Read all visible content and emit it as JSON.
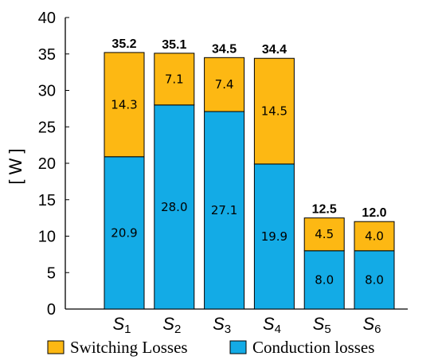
{
  "colors": {
    "switching": "#FDB813",
    "conduction": "#13ABE6",
    "edge": "#000000"
  },
  "chart_data": {
    "type": "bar",
    "stacked": true,
    "categories": [
      {
        "base": "S",
        "sub": "1"
      },
      {
        "base": "S",
        "sub": "2"
      },
      {
        "base": "S",
        "sub": "3"
      },
      {
        "base": "S",
        "sub": "4"
      },
      {
        "base": "S",
        "sub": "5"
      },
      {
        "base": "S",
        "sub": "6"
      }
    ],
    "series": [
      {
        "name": "Conduction losses",
        "values": [
          20.9,
          28.0,
          27.1,
          19.9,
          8.0,
          8.0
        ],
        "labels": [
          "20.9",
          "28.0",
          "27.1",
          "19.9",
          "8.0",
          "8.0"
        ]
      },
      {
        "name": "Switching Losses",
        "values": [
          14.3,
          7.1,
          7.4,
          14.5,
          4.5,
          4.0
        ],
        "labels": [
          "14.3",
          "7.1",
          "7.4",
          "14.5",
          "4.5",
          "4.0"
        ]
      }
    ],
    "totals": [
      "35.2",
      "35.1",
      "34.5",
      "34.4",
      "12.5",
      "12.0"
    ],
    "ylabel": "[ W ]",
    "xlabel": "",
    "ylim": [
      0,
      40
    ],
    "yticks": [
      "0",
      "5",
      "10",
      "15",
      "20",
      "25",
      "30",
      "35",
      "40"
    ],
    "grid": false,
    "legend": {
      "position": "bottom",
      "entries": [
        {
          "name": "Switching Losses",
          "series": 1
        },
        {
          "name": "Conduction losses",
          "series": 0
        }
      ]
    }
  }
}
